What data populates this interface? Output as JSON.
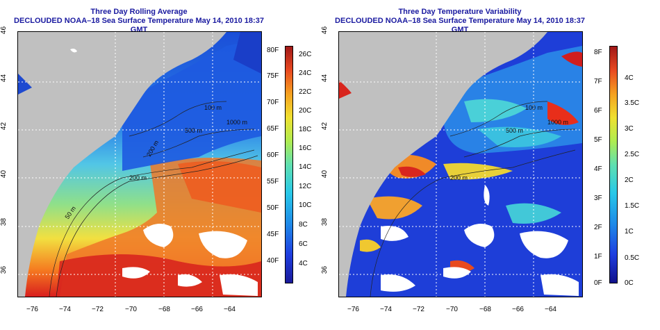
{
  "left_panel": {
    "title_line1": "Three Day Rolling Average",
    "title_line2": "DECLOUDED NOAA–18 Sea Surface Temperature May 14, 2010 18:37 GMT",
    "colorbar_f": [
      "80F",
      "75F",
      "70F",
      "65F",
      "60F",
      "55F",
      "50F",
      "45F",
      "40F"
    ],
    "colorbar_c": [
      "26C",
      "24C",
      "22C",
      "20C",
      "18C",
      "16C",
      "14C",
      "12C",
      "10C",
      "8C",
      "6C",
      "4C"
    ],
    "contours": [
      "100 m",
      "500 m",
      "1000 m",
      "200 m",
      "200 m",
      "50 m"
    ]
  },
  "right_panel": {
    "title_line1": "Three Day Temperature Variability",
    "title_line2": "DECLOUDED NOAA–18 Sea Surface Temperature May 14, 2010 18:37 GMT",
    "colorbar_f": [
      "8F",
      "7F",
      "6F",
      "5F",
      "4F",
      "3F",
      "2F",
      "1F",
      "0F"
    ],
    "colorbar_c": [
      "4C",
      "3.5C",
      "3C",
      "2.5C",
      "2C",
      "1.5C",
      "1C",
      "0.5C",
      "0C"
    ],
    "contours": [
      "100 m",
      "500 m",
      "1000 m",
      "200 m"
    ]
  },
  "x_ticks": [
    "−76",
    "−74",
    "−72",
    "−70",
    "−68",
    "−66",
    "−64"
  ],
  "y_ticks": [
    "36",
    "38",
    "40",
    "42",
    "44",
    "46"
  ],
  "colors": {
    "land": "#c0c0c0",
    "title": "#1a1aa0",
    "grid": "#ffffff"
  }
}
